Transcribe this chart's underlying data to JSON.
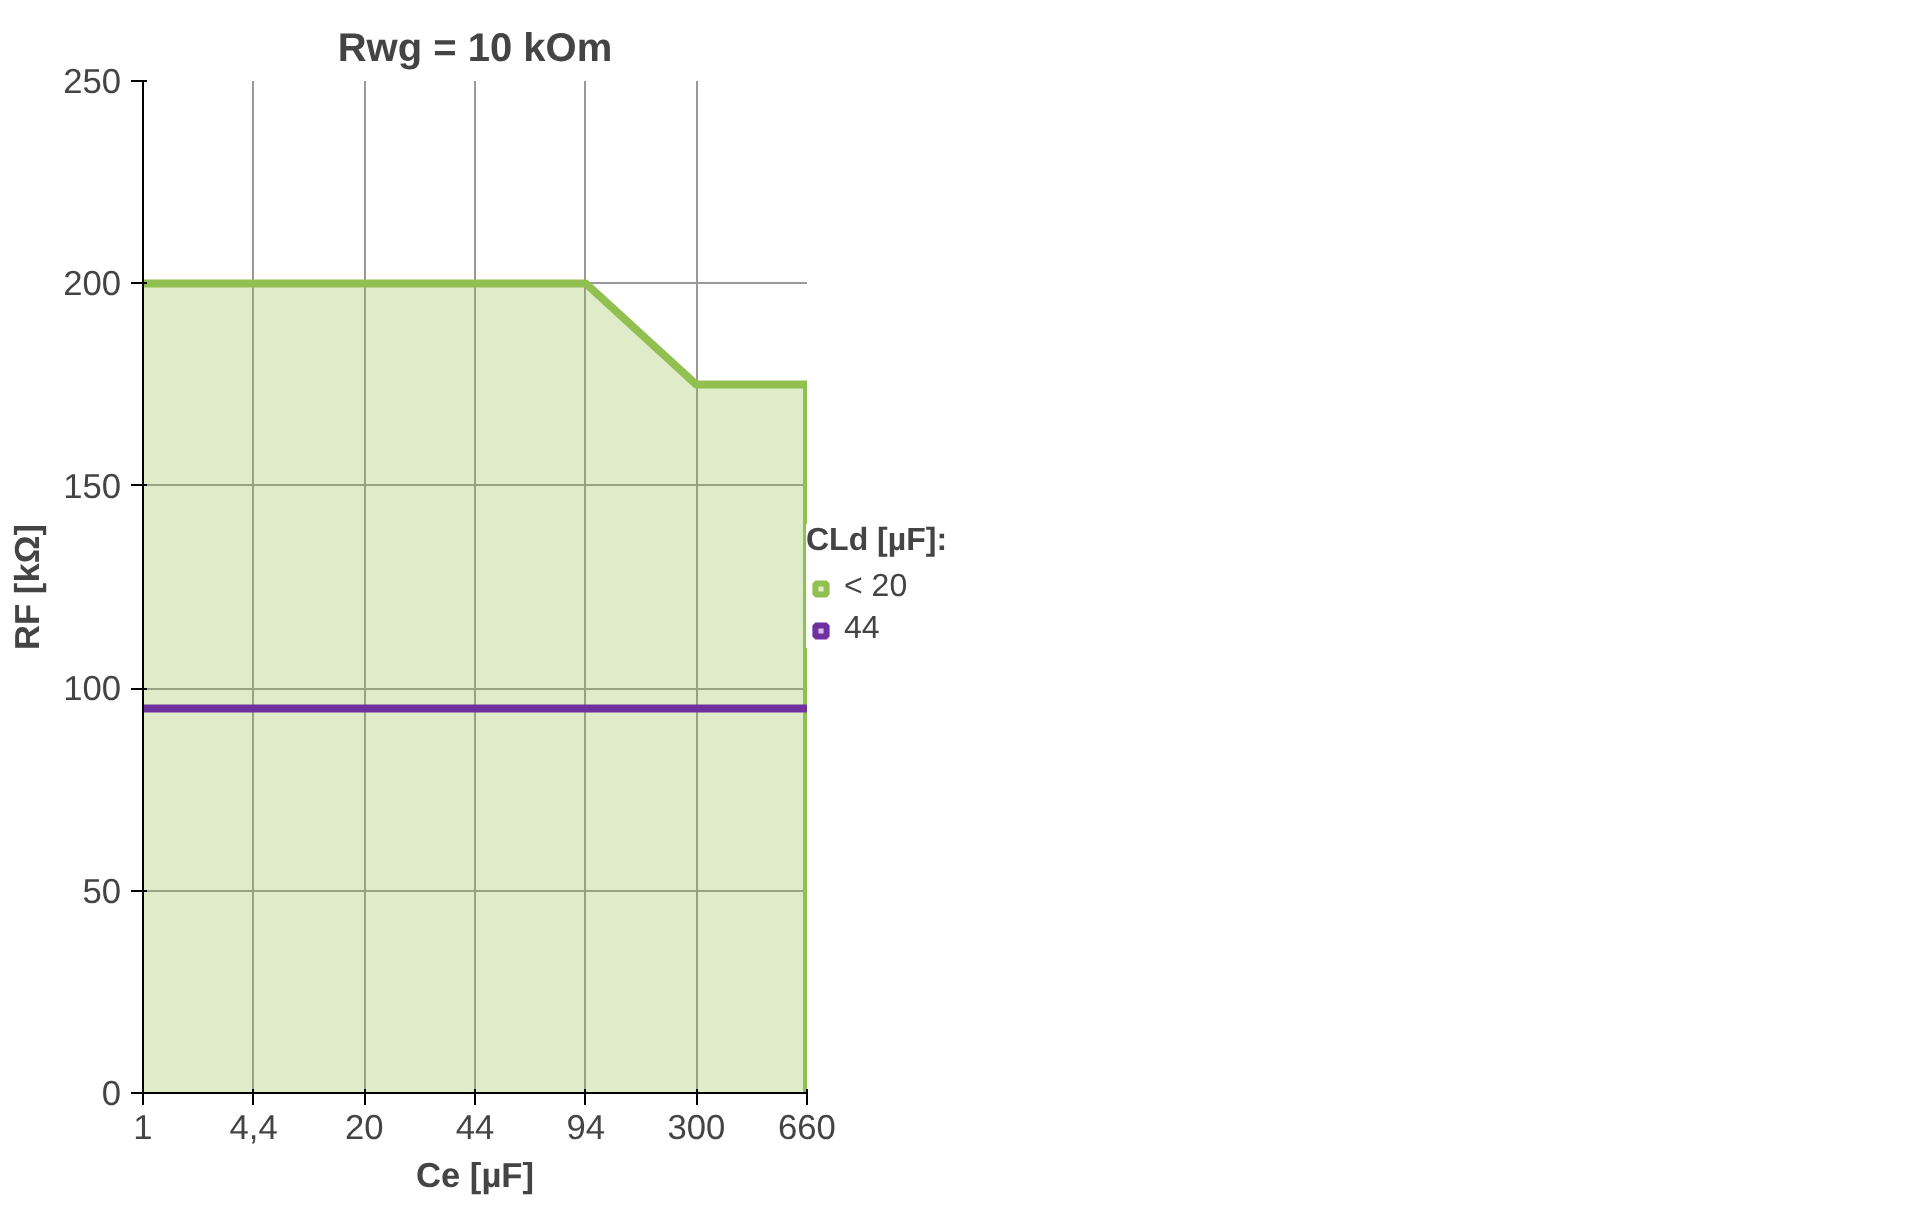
{
  "chart_data": {
    "type": "area",
    "title": "Rwg = 10 kOm",
    "xlabel": "Ce [µF]",
    "ylabel": "RF [kΩ]",
    "legend_title": "CLd [µF]:",
    "categories": [
      "1",
      "4,4",
      "20",
      "44",
      "94",
      "300",
      "660"
    ],
    "series": [
      {
        "name": "< 20",
        "type": "area",
        "color": "#92c050",
        "values": [
          200,
          200,
          200,
          200,
          200,
          175,
          175
        ]
      },
      {
        "name": "44",
        "type": "line",
        "color": "#7030a0",
        "values": [
          95,
          95,
          95,
          95,
          95,
          95,
          95
        ]
      }
    ],
    "ylim": [
      0,
      250
    ],
    "yticks": [
      0,
      50,
      100,
      150,
      200,
      250
    ],
    "grid": true,
    "legend": "right"
  }
}
